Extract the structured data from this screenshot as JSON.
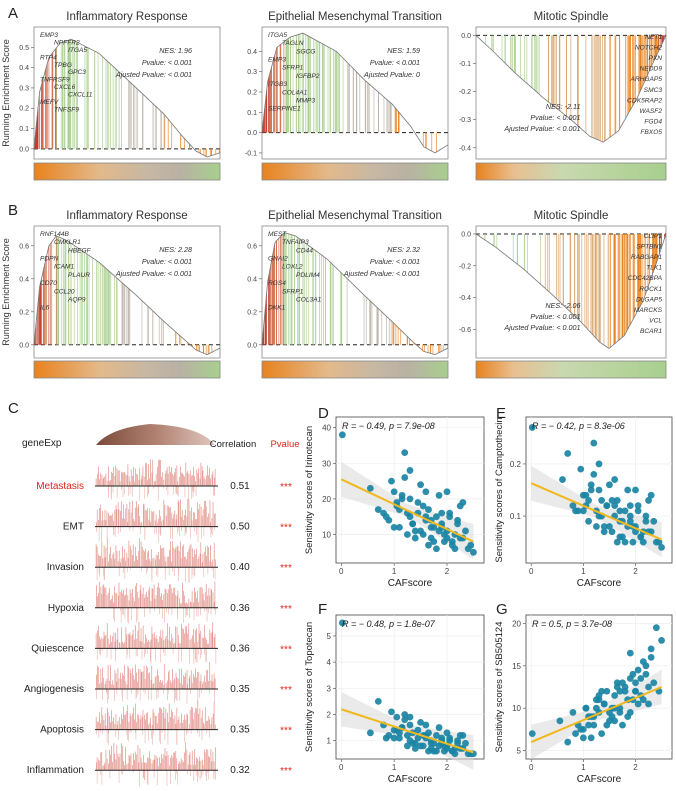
{
  "panel_letters": {
    "A": "A",
    "B": "B",
    "C": "C",
    "D": "D",
    "E": "E",
    "F": "F",
    "G": "G"
  },
  "gsea_ylabel": "Running Enrichment Score",
  "colors": {
    "red": "#c0392b",
    "orange": "#e8821e",
    "green": "#a8cf8e",
    "gray": "#b9b1a4",
    "teal": "#1a84a4",
    "fit": "#f0b81c",
    "corr_red": "#e0231b"
  },
  "chart_data": [
    {
      "id": "A1",
      "type": "line",
      "title": "Inflammatory Response",
      "ylabel": "Running Enrichment Score",
      "y_ticks": [
        "0.5",
        "0.4",
        "0.3",
        "0.2",
        "0.1",
        "0.0"
      ],
      "ylim": [
        -0.05,
        0.6
      ],
      "curve": [
        [
          0,
          0
        ],
        [
          0.03,
          0.28
        ],
        [
          0.08,
          0.45
        ],
        [
          0.14,
          0.52
        ],
        [
          0.2,
          0.54
        ],
        [
          0.35,
          0.47
        ],
        [
          0.55,
          0.3
        ],
        [
          0.7,
          0.17
        ],
        [
          0.8,
          0.06
        ],
        [
          0.87,
          -0.01
        ],
        [
          0.93,
          -0.04
        ],
        [
          1,
          -0.02
        ]
      ],
      "genes": [
        "EMP3",
        "NPFFR2",
        "ITGA5",
        "RTP4",
        "TPBG",
        "GPC3",
        "TNFRSF9",
        "CXCL6",
        "CXCL11",
        "MEFV",
        "TNFSF9"
      ],
      "stats": [
        "NES: 1.96",
        "Pvalue: < 0.001",
        "Ajusted Pvalue: < 0.001"
      ],
      "direction": "up"
    },
    {
      "id": "A2",
      "type": "line",
      "title": "Epithelial Mesenchymal Transition",
      "ylabel": "",
      "y_ticks": [
        "0.4",
        "0.3",
        "0.2",
        "0.1",
        "0.0",
        "-0.1"
      ],
      "ylim": [
        -0.13,
        0.52
      ],
      "curve": [
        [
          0,
          0
        ],
        [
          0.03,
          0.25
        ],
        [
          0.08,
          0.42
        ],
        [
          0.15,
          0.47
        ],
        [
          0.22,
          0.49
        ],
        [
          0.4,
          0.4
        ],
        [
          0.55,
          0.26
        ],
        [
          0.7,
          0.14
        ],
        [
          0.8,
          0.03
        ],
        [
          0.87,
          -0.07
        ],
        [
          0.93,
          -0.1
        ],
        [
          1,
          -0.06
        ]
      ],
      "genes": [
        "ITGA5",
        "TAGLN",
        "SGCG",
        "EMP3",
        "SFRP1",
        "IGFBP2",
        "ITGB3",
        "COL4A1",
        "MMP3",
        "SERPINE1"
      ],
      "stats": [
        "NES: 1.59",
        "Pvalue: < 0.001",
        "Ajusted Pvalue: 0"
      ],
      "direction": "up"
    },
    {
      "id": "A3",
      "type": "line",
      "title": "Mitotic Spindle",
      "ylabel": "",
      "y_ticks": [
        "0.0",
        "-0.1",
        "-0.2",
        "-0.3",
        "-0.4"
      ],
      "ylim": [
        -0.44,
        0.03
      ],
      "curve": [
        [
          0,
          0
        ],
        [
          0.08,
          -0.05
        ],
        [
          0.2,
          -0.13
        ],
        [
          0.35,
          -0.22
        ],
        [
          0.5,
          -0.3
        ],
        [
          0.6,
          -0.36
        ],
        [
          0.67,
          -0.38
        ],
        [
          0.75,
          -0.34
        ],
        [
          0.85,
          -0.22
        ],
        [
          0.93,
          -0.1
        ],
        [
          1,
          0
        ]
      ],
      "genes": [
        "NET1",
        "NOTCH2",
        "PXN",
        "NEDD9",
        "ARHGAP5",
        "SMC3",
        "CDK5RAP2",
        "WASF2",
        "FGD4",
        "FBXO5"
      ],
      "stats": [
        "NES: -2.11",
        "Pvalue: < 0.001",
        "Ajusted Pvalue: < 0.001"
      ],
      "direction": "down"
    },
    {
      "id": "B1",
      "type": "line",
      "title": "Inflammatory Response",
      "ylabel": "Running Enrichment Score",
      "y_ticks": [
        "0.6",
        "0.4",
        "0.2",
        "0.0"
      ],
      "ylim": [
        -0.08,
        0.72
      ],
      "curve": [
        [
          0,
          0
        ],
        [
          0.03,
          0.35
        ],
        [
          0.08,
          0.6
        ],
        [
          0.12,
          0.66
        ],
        [
          0.18,
          0.63
        ],
        [
          0.35,
          0.5
        ],
        [
          0.55,
          0.3
        ],
        [
          0.7,
          0.14
        ],
        [
          0.8,
          0.04
        ],
        [
          0.87,
          -0.03
        ],
        [
          0.93,
          -0.06
        ],
        [
          1,
          -0.02
        ]
      ],
      "genes": [
        "RNF144B",
        "CMKLR1",
        "HBEGF",
        "PDPN",
        "ICAM1",
        "PLAUR",
        "CD70",
        "CCL20",
        "AQP9",
        "IL6"
      ],
      "stats": [
        "NES: 2.28",
        "Pvalue: < 0.001",
        "Ajusted Pvalue: < 0.001"
      ],
      "direction": "up"
    },
    {
      "id": "B2",
      "type": "line",
      "title": "Epithelial Mesenchymal Transition",
      "ylabel": "",
      "y_ticks": [
        "0.6",
        "0.4",
        "0.2",
        "0.0"
      ],
      "ylim": [
        -0.08,
        0.72
      ],
      "curve": [
        [
          0,
          0
        ],
        [
          0.03,
          0.38
        ],
        [
          0.07,
          0.62
        ],
        [
          0.12,
          0.68
        ],
        [
          0.18,
          0.66
        ],
        [
          0.35,
          0.52
        ],
        [
          0.55,
          0.3
        ],
        [
          0.7,
          0.14
        ],
        [
          0.8,
          0.03
        ],
        [
          0.87,
          -0.04
        ],
        [
          0.93,
          -0.06
        ],
        [
          1,
          -0.02
        ]
      ],
      "genes": [
        "MEST",
        "TNFAIP3",
        "CD44",
        "GNAI2",
        "LOXL2",
        "PDLIM4",
        "RGS4",
        "SFRP1",
        "COL3A1",
        "DKK1"
      ],
      "stats": [
        "NES: 2.32",
        "Pvalue: < 0.001",
        "Ajusted Pvalue: < 0.001"
      ],
      "direction": "up"
    },
    {
      "id": "B3",
      "type": "line",
      "title": "Mitotic Spindle",
      "ylabel": "",
      "y_ticks": [
        "0.0",
        "-0.2",
        "-0.4",
        "-0.6"
      ],
      "ylim": [
        -0.78,
        0.05
      ],
      "curve": [
        [
          0,
          0
        ],
        [
          0.1,
          -0.08
        ],
        [
          0.25,
          -0.22
        ],
        [
          0.4,
          -0.38
        ],
        [
          0.55,
          -0.55
        ],
        [
          0.65,
          -0.68
        ],
        [
          0.7,
          -0.72
        ],
        [
          0.78,
          -0.64
        ],
        [
          0.88,
          -0.42
        ],
        [
          0.95,
          -0.18
        ],
        [
          1,
          0
        ]
      ],
      "genes": [
        "CLIP1",
        "SPTBN1",
        "RABGAP1",
        "TLK1",
        "CDC42BPA",
        "ROCK1",
        "DLGAP5",
        "MARCKS",
        "VCL",
        "BCAR1"
      ],
      "stats": [
        "NES: -2.06",
        "Pvalue: < 0.001",
        "Ajusted Pvalue: < 0.001"
      ],
      "direction": "down"
    },
    {
      "id": "C",
      "type": "table",
      "top_label": "geneExp",
      "columns": [
        "Correlation",
        "Pvalue"
      ],
      "rows": [
        {
          "name": "Metastasis",
          "corr": "0.51",
          "p": "***"
        },
        {
          "name": "EMT",
          "corr": "0.50",
          "p": "***"
        },
        {
          "name": "Invasion",
          "corr": "0.40",
          "p": "***"
        },
        {
          "name": "Hypoxia",
          "corr": "0.36",
          "p": "***"
        },
        {
          "name": "Quiescence",
          "corr": "0.36",
          "p": "***"
        },
        {
          "name": "Angiogenesis",
          "corr": "0.35",
          "p": "***"
        },
        {
          "name": "Apoptosis",
          "corr": "0.35",
          "p": "***"
        },
        {
          "name": "Inflammation",
          "corr": "0.32",
          "p": "***"
        }
      ]
    },
    {
      "id": "D",
      "type": "scatter",
      "xlabel": "CAFscore",
      "ylabel": "Sensitivity scores of Irinotecan",
      "stat": "R = − 0.49, p = 7.9e-08",
      "xlim": [
        -0.1,
        2.7
      ],
      "ylim": [
        2,
        43
      ],
      "x_ticks": [
        0,
        1,
        2
      ],
      "y_ticks": [
        10,
        20,
        30,
        40
      ],
      "fit": [
        [
          0,
          25.5
        ],
        [
          2.5,
          8
        ]
      ],
      "x": [
        0.02,
        0.55,
        0.7,
        0.8,
        0.9,
        1.0,
        1.05,
        1.1,
        1.15,
        1.2,
        1.25,
        1.3,
        1.35,
        1.4,
        1.45,
        1.5,
        1.55,
        1.6,
        1.65,
        1.7,
        1.75,
        1.8,
        1.85,
        1.9,
        1.95,
        2.0,
        2.05,
        2.1,
        2.15,
        2.2,
        2.25,
        2.3,
        2.4,
        2.5,
        1.0,
        1.2,
        1.4,
        1.6,
        1.8,
        2.0,
        2.2,
        1.1,
        1.3,
        1.5,
        1.7,
        1.9,
        2.1,
        2.3,
        0.95,
        1.25,
        1.45,
        1.65,
        1.85,
        2.05,
        2.25,
        1.15,
        1.35,
        1.55,
        1.75,
        1.95,
        2.15,
        2.35,
        0.85,
        1.05,
        2.45,
        1.6,
        1.9,
        1.3,
        1.7,
        2.0
      ],
      "y": [
        38,
        23,
        17,
        16,
        14,
        22,
        18,
        12,
        20,
        33,
        16,
        15,
        13,
        11,
        19,
        24,
        10,
        14,
        17,
        9,
        12,
        15,
        21,
        13,
        8,
        11,
        16,
        7,
        10,
        14,
        18,
        9,
        6,
        5,
        12,
        26,
        9,
        15,
        6,
        22,
        13,
        17,
        20,
        11,
        14,
        12,
        8,
        19,
        25,
        10,
        16,
        7,
        11,
        15,
        9,
        21,
        13,
        18,
        8,
        10,
        6,
        11,
        15,
        19,
        7,
        22,
        16,
        28,
        12,
        9
      ]
    },
    {
      "id": "E",
      "type": "scatter",
      "xlabel": "CAFscore",
      "ylabel": "Sensitivity scores of Camptothecin",
      "stat": "R = − 0.42, p = 8.3e-06",
      "xlim": [
        -0.1,
        2.7
      ],
      "ylim": [
        0.01,
        0.29
      ],
      "x_ticks": [
        0,
        1,
        2
      ],
      "y_ticks": [
        0.1,
        0.2
      ],
      "fit": [
        [
          0,
          0.163
        ],
        [
          2.5,
          0.055
        ]
      ],
      "x": [
        0.02,
        0.6,
        0.7,
        0.8,
        0.9,
        1.0,
        1.05,
        1.1,
        1.15,
        1.2,
        1.25,
        1.3,
        1.35,
        1.4,
        1.45,
        1.5,
        1.55,
        1.6,
        1.65,
        1.7,
        1.75,
        1.8,
        1.85,
        1.9,
        1.95,
        2.0,
        2.05,
        2.1,
        2.15,
        2.2,
        2.25,
        2.3,
        2.4,
        2.5,
        1.0,
        1.2,
        1.4,
        1.6,
        1.8,
        2.0,
        2.2,
        1.1,
        1.3,
        1.5,
        1.7,
        1.9,
        2.1,
        2.3,
        0.95,
        1.25,
        1.45,
        1.65,
        1.85,
        2.05,
        2.25,
        1.15,
        1.35,
        1.55,
        1.75,
        1.95,
        2.15,
        2.35,
        0.85,
        1.05,
        2.45,
        1.6,
        1.9,
        1.3,
        1.7,
        2.0
      ],
      "y": [
        0.27,
        0.17,
        0.22,
        0.12,
        0.11,
        0.14,
        0.12,
        0.09,
        0.15,
        0.24,
        0.11,
        0.1,
        0.13,
        0.08,
        0.12,
        0.16,
        0.07,
        0.1,
        0.13,
        0.06,
        0.09,
        0.11,
        0.15,
        0.1,
        0.05,
        0.08,
        0.12,
        0.06,
        0.07,
        0.1,
        0.13,
        0.07,
        0.05,
        0.04,
        0.11,
        0.18,
        0.07,
        0.12,
        0.05,
        0.15,
        0.09,
        0.13,
        0.15,
        0.08,
        0.11,
        0.09,
        0.06,
        0.14,
        0.19,
        0.08,
        0.12,
        0.05,
        0.08,
        0.11,
        0.07,
        0.16,
        0.1,
        0.13,
        0.06,
        0.08,
        0.05,
        0.09,
        0.11,
        0.14,
        0.05,
        0.17,
        0.12,
        0.2,
        0.09,
        0.07
      ]
    },
    {
      "id": "F",
      "type": "scatter",
      "xlabel": "CAFscore",
      "ylabel": "Sensitivity scores of Topotecan",
      "stat": "R = − 0.48, p = 1.8e-07",
      "xlim": [
        -0.1,
        2.7
      ],
      "ylim": [
        0.3,
        5.8
      ],
      "x_ticks": [
        0,
        1,
        2
      ],
      "y_ticks": [
        1,
        2,
        3,
        4,
        5
      ],
      "fit": [
        [
          0,
          2.2
        ],
        [
          2.5,
          0.55
        ]
      ],
      "x": [
        0.02,
        0.55,
        0.7,
        0.8,
        0.9,
        1.0,
        1.05,
        1.1,
        1.15,
        1.2,
        1.25,
        1.3,
        1.35,
        1.4,
        1.45,
        1.5,
        1.55,
        1.6,
        1.65,
        1.7,
        1.75,
        1.8,
        1.85,
        1.9,
        1.95,
        2.0,
        2.05,
        2.1,
        2.15,
        2.2,
        2.25,
        2.3,
        2.4,
        2.5,
        1.0,
        1.2,
        1.4,
        1.6,
        1.8,
        2.0,
        2.2,
        1.1,
        1.3,
        1.5,
        1.7,
        1.9,
        2.1,
        2.3,
        0.95,
        1.25,
        1.45,
        1.65,
        1.85,
        2.05,
        2.25,
        1.15,
        1.35,
        1.55,
        1.75,
        1.95,
        2.15,
        2.35,
        0.85,
        1.05,
        2.45,
        1.6,
        1.9,
        1.3,
        1.7,
        2.0
      ],
      "y": [
        5.5,
        1.3,
        2.5,
        1.6,
        1.2,
        1.4,
        1.9,
        1.1,
        1.5,
        2.0,
        1.2,
        1.0,
        1.3,
        0.9,
        1.4,
        1.7,
        0.8,
        1.1,
        1.3,
        0.7,
        0.9,
        1.2,
        1.5,
        1.0,
        0.6,
        0.8,
        1.1,
        0.6,
        0.7,
        1.0,
        1.2,
        0.7,
        0.5,
        0.5,
        1.1,
        1.8,
        0.7,
        1.2,
        0.6,
        1.3,
        0.9,
        1.3,
        1.6,
        0.8,
        1.0,
        0.9,
        0.6,
        1.2,
        2.1,
        0.8,
        1.1,
        0.6,
        0.8,
        1.0,
        0.7,
        1.5,
        0.9,
        1.2,
        0.6,
        0.8,
        0.5,
        0.9,
        1.1,
        1.4,
        0.5,
        1.6,
        1.1,
        1.9,
        0.9,
        0.7
      ]
    },
    {
      "id": "G",
      "type": "scatter",
      "xlabel": "CAFscore",
      "ylabel": "Sensitivity scores of SB505124",
      "stat": "R = 0.5, p = 3.7e-08",
      "xlim": [
        -0.1,
        2.7
      ],
      "ylim": [
        4,
        21
      ],
      "x_ticks": [
        0,
        1,
        2
      ],
      "y_ticks": [
        5,
        10,
        15,
        20
      ],
      "fit": [
        [
          0,
          6
        ],
        [
          2.5,
          12.5
        ]
      ],
      "x": [
        0.02,
        0.55,
        0.7,
        0.8,
        0.9,
        1.0,
        1.05,
        1.1,
        1.15,
        1.2,
        1.25,
        1.3,
        1.35,
        1.4,
        1.45,
        1.5,
        1.55,
        1.6,
        1.65,
        1.7,
        1.75,
        1.8,
        1.85,
        1.9,
        1.95,
        2.0,
        2.05,
        2.1,
        2.15,
        2.2,
        2.25,
        2.3,
        2.4,
        2.5,
        1.0,
        1.2,
        1.4,
        1.6,
        1.8,
        2.0,
        2.2,
        1.1,
        1.3,
        1.5,
        1.7,
        1.9,
        2.1,
        2.3,
        0.95,
        1.25,
        1.45,
        1.65,
        1.85,
        2.05,
        2.25,
        1.15,
        1.35,
        1.55,
        1.75,
        1.95,
        2.15,
        2.35,
        0.85,
        1.05,
        2.45,
        1.6,
        1.9,
        1.3,
        1.7,
        2.0
      ],
      "y": [
        7,
        8.5,
        6,
        9.5,
        8,
        7.5,
        10,
        9,
        6.5,
        8,
        11,
        9.5,
        7,
        10.5,
        12,
        8.5,
        9,
        11.5,
        13,
        10,
        8,
        12.5,
        11,
        9.5,
        14,
        12,
        10.5,
        13.5,
        11,
        15,
        12.5,
        16,
        19.5,
        18,
        6.5,
        9,
        10.5,
        8.5,
        12,
        13,
        14,
        8,
        11,
        9.5,
        12,
        13.5,
        11.5,
        17,
        7.5,
        10,
        8,
        12.5,
        9,
        14.5,
        10.5,
        9,
        12,
        10,
        13,
        11,
        15.5,
        13,
        7,
        10,
        12,
        10,
        16.5,
        11.5,
        9.5,
        12
      ]
    }
  ]
}
